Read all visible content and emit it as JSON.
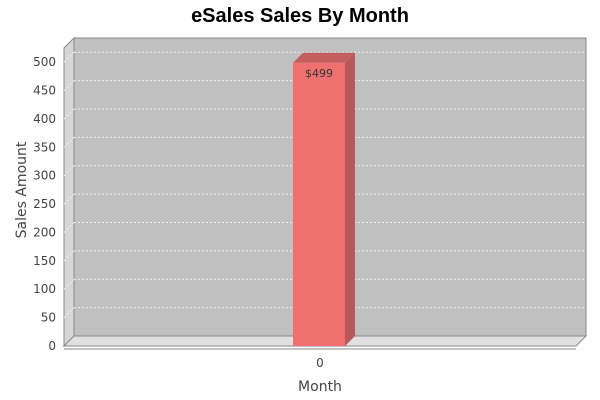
{
  "chart_data": {
    "type": "bar",
    "title": "eSales Sales By Month",
    "xlabel": "Month",
    "ylabel": "Sales Amount",
    "categories": [
      "0"
    ],
    "values": [
      499
    ],
    "data_labels": [
      "$499"
    ],
    "ylim": [
      0,
      525
    ],
    "yticks": [
      0,
      50,
      100,
      150,
      200,
      250,
      300,
      350,
      400,
      450,
      500
    ],
    "grid": true,
    "three_d": true,
    "colors": {
      "bar_front": "#f07070",
      "bar_side": "#b85858",
      "bar_top": "#c45f5f",
      "plot_back": "#c0c0c0",
      "plot_wall": "#d6d6d6",
      "plot_floor": "#e0e0e0",
      "grid": "#f2f2f2"
    }
  }
}
